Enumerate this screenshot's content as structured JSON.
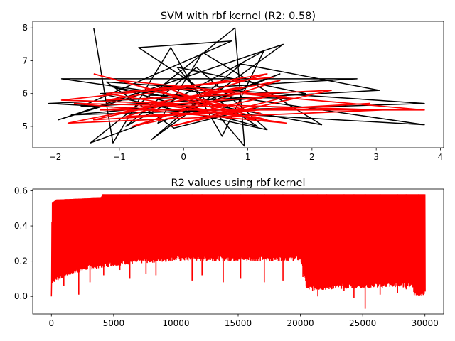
{
  "figure": {
    "background": "#ffffff"
  },
  "chart_data": [
    {
      "type": "line",
      "title": "SVM with rbf kernel (R2: 0.58)",
      "xlabel": "",
      "ylabel": "",
      "xlim": [
        -2.35,
        4.05
      ],
      "ylim": [
        4.35,
        8.2
      ],
      "xticks": [
        -2,
        -1,
        0,
        1,
        2,
        3,
        4
      ],
      "yticks": [
        5,
        6,
        7,
        8
      ],
      "grid": false,
      "legend": "none",
      "series": [
        {
          "color": "#000000",
          "style": "dense zig-zag line through the data points",
          "points": [
            [
              -1.4,
              8.0
            ],
            [
              -1.1,
              4.5
            ],
            [
              -0.2,
              7.4
            ],
            [
              0.6,
              4.7
            ],
            [
              1.25,
              7.3
            ],
            [
              -0.9,
              5.0
            ],
            [
              0.2,
              6.8
            ],
            [
              1.3,
              4.9
            ],
            [
              -1.3,
              6.0
            ],
            [
              2.7,
              6.45
            ],
            [
              -1.9,
              6.45
            ],
            [
              0.1,
              5.9
            ],
            [
              -2.1,
              5.7
            ],
            [
              3.75,
              5.05
            ],
            [
              -0.3,
              6.2
            ],
            [
              -1.95,
              5.2
            ],
            [
              1.55,
              7.5
            ],
            [
              -0.5,
              4.6
            ],
            [
              0.9,
              6.9
            ],
            [
              3.05,
              6.1
            ],
            [
              -1.6,
              5.6
            ],
            [
              0.75,
              7.6
            ],
            [
              -0.7,
              7.4
            ],
            [
              1.15,
              5.0
            ],
            [
              -1.1,
              6.2
            ],
            [
              2.15,
              5.05
            ],
            [
              0.3,
              7.25
            ],
            [
              -0.4,
              5.1
            ],
            [
              1.5,
              6.6
            ],
            [
              -1.45,
              4.5
            ],
            [
              0.8,
              8.0
            ],
            [
              0.95,
              4.4
            ],
            [
              -0.1,
              6.8
            ],
            [
              1.9,
              6.0
            ],
            [
              -1.75,
              5.35
            ],
            [
              3.75,
              5.7
            ],
            [
              -1.2,
              6.35
            ],
            [
              -0.15,
              4.95
            ],
            [
              1.7,
              5.85
            ],
            [
              -0.55,
              5.95
            ]
          ]
        },
        {
          "color": "#ff0000",
          "style": "prediction line",
          "points": [
            [
              -1.4,
              6.6
            ],
            [
              1.3,
              5.2
            ],
            [
              -1.2,
              6.0
            ],
            [
              1.4,
              6.5
            ],
            [
              -1.9,
              5.8
            ],
            [
              3.1,
              5.5
            ],
            [
              -1.8,
              5.1
            ],
            [
              1.5,
              6.4
            ],
            [
              -0.8,
              5.0
            ],
            [
              1.3,
              5.9
            ],
            [
              -1.3,
              5.5
            ],
            [
              3.75,
              5.5
            ],
            [
              -0.3,
              6.2
            ],
            [
              1.1,
              5.2
            ],
            [
              -1.0,
              6.4
            ],
            [
              1.6,
              5.9
            ],
            [
              -0.2,
              5.0
            ],
            [
              2.3,
              6.1
            ],
            [
              -1.2,
              5.8
            ],
            [
              1.3,
              6.6
            ],
            [
              -0.9,
              5.3
            ],
            [
              2.9,
              5.7
            ],
            [
              -1.4,
              5.2
            ],
            [
              0.9,
              6.2
            ],
            [
              -0.5,
              5.7
            ],
            [
              1.6,
              5.1
            ],
            [
              -1.7,
              5.7
            ],
            [
              0.6,
              5.6
            ],
            [
              -0.1,
              6.0
            ],
            [
              1.2,
              5.4
            ]
          ]
        }
      ]
    },
    {
      "type": "line",
      "title": "R2 values using rbf kernel",
      "xlabel": "",
      "ylabel": "",
      "xlim": [
        -1500,
        31500
      ],
      "ylim": [
        -0.1,
        0.61
      ],
      "xticks": [
        0,
        5000,
        10000,
        15000,
        20000,
        25000,
        30000
      ],
      "yticks": [
        0.0,
        0.2,
        0.4,
        0.6
      ],
      "grid": false,
      "legend": "none",
      "series": [
        {
          "color": "#ff0000",
          "style": "dense oscillating band",
          "n_points": 30000,
          "upper_envelope": [
            [
              0,
              0.0
            ],
            [
              50,
              0.53
            ],
            [
              400,
              0.55
            ],
            [
              4000,
              0.56
            ],
            [
              4100,
              0.58
            ],
            [
              30000,
              0.58
            ]
          ],
          "base_low": [
            [
              0,
              0.07
            ],
            [
              500,
              0.09
            ],
            [
              1500,
              0.12
            ],
            [
              3000,
              0.15
            ],
            [
              6000,
              0.18
            ],
            [
              10000,
              0.2
            ],
            [
              20000,
              0.2
            ],
            [
              20500,
              0.03
            ],
            [
              23000,
              0.04
            ],
            [
              27000,
              0.05
            ],
            [
              29000,
              0.05
            ],
            [
              29100,
              0.0
            ],
            [
              30000,
              0.0
            ]
          ],
          "spikes": [
            [
              1000,
              0.06
            ],
            [
              2200,
              0.01
            ],
            [
              3100,
              0.08
            ],
            [
              4200,
              0.12
            ],
            [
              5500,
              0.15
            ],
            [
              6300,
              0.1
            ],
            [
              7600,
              0.13
            ],
            [
              8400,
              0.12
            ],
            [
              11300,
              0.09
            ],
            [
              12100,
              0.12
            ],
            [
              13800,
              0.08
            ],
            [
              15200,
              0.1
            ],
            [
              17100,
              0.08
            ],
            [
              18600,
              0.09
            ],
            [
              20200,
              0.11
            ],
            [
              21400,
              0.0
            ],
            [
              22100,
              0.05
            ],
            [
              23500,
              0.03
            ],
            [
              24300,
              -0.01
            ],
            [
              25200,
              -0.07
            ],
            [
              26400,
              0.01
            ],
            [
              27800,
              0.02
            ],
            [
              28500,
              0.04
            ],
            [
              29500,
              0.06
            ]
          ]
        }
      ]
    }
  ]
}
